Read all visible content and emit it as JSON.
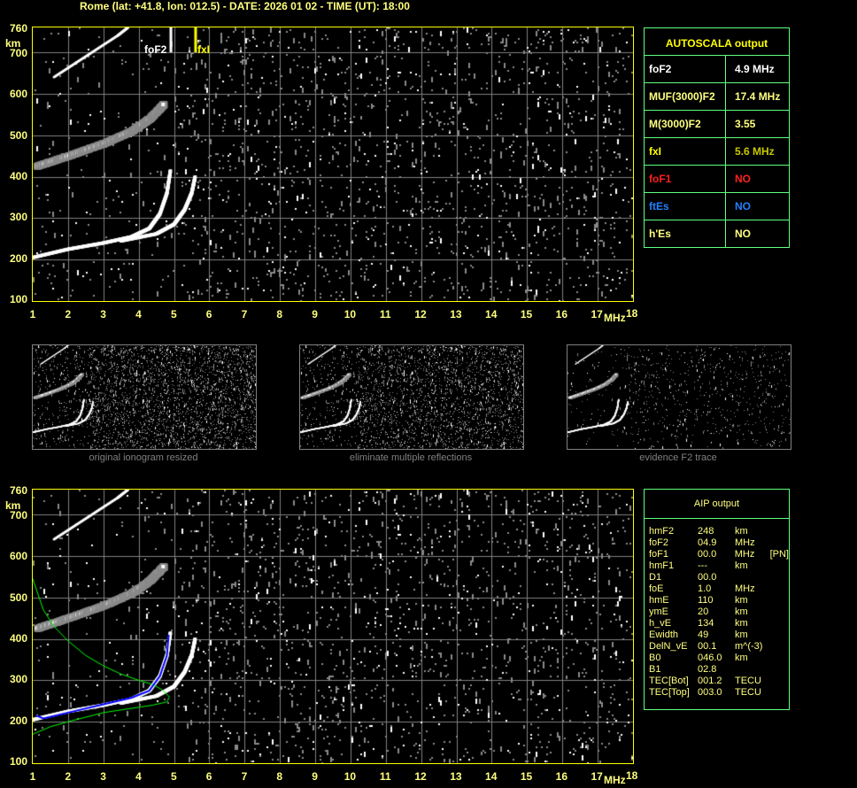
{
  "header": {
    "title": "Rome (lat: +41.8, lon: 012.5) - DATE: 2026 01 02 - TIME (UT): 18:00"
  },
  "axes": {
    "y_unit": "km",
    "x_unit": "MHz",
    "y_ticks": [
      "760",
      "700",
      "600",
      "500",
      "400",
      "300",
      "200",
      "100"
    ],
    "x_ticks": [
      "1",
      "2",
      "3",
      "4",
      "5",
      "6",
      "7",
      "8",
      "9",
      "10",
      "11",
      "12",
      "13",
      "14",
      "15",
      "16",
      "17"
    ],
    "x_last": "18"
  },
  "markers": {
    "foF2_label": "foF2",
    "fxI_label": "fxI",
    "foF2_freq": 4.9,
    "fxI_freq": 5.6
  },
  "autoscala": {
    "title": "AUTOSCALA output",
    "rows": [
      {
        "key": "foF2",
        "value": "4.9 MHz",
        "color": "#ffffff",
        "vcolor": "#ffffff"
      },
      {
        "key": "MUF(3000)F2",
        "value": "17.4 MHz",
        "color": "#ffff80",
        "vcolor": "#ffff80"
      },
      {
        "key": "M(3000)F2",
        "value": "3.55",
        "color": "#ffff80",
        "vcolor": "#ffff80"
      },
      {
        "key": "fxI",
        "value": "5.6 MHz",
        "color": "#ffff00",
        "vcolor": "#c8c800"
      },
      {
        "key": "foF1",
        "value": "NO",
        "color": "#ff2020",
        "vcolor": "#ff2020"
      },
      {
        "key": "ftEs",
        "value": "NO",
        "color": "#2080ff",
        "vcolor": "#2080ff"
      },
      {
        "key": "h'Es",
        "value": "NO",
        "color": "#ffff80",
        "vcolor": "#ffff80"
      }
    ]
  },
  "thumbnails": [
    {
      "caption": "original ionogram resized"
    },
    {
      "caption": "eliminate multiple reflections"
    },
    {
      "caption": "evidence F2 trace"
    }
  ],
  "aip": {
    "title": "AIP output",
    "rows": [
      [
        "hmF2",
        "248",
        "km",
        ""
      ],
      [
        "foF2",
        "04.9",
        "MHz",
        ""
      ],
      [
        "foF1",
        "00.0",
        "MHz",
        "[PN]"
      ],
      [
        "hmF1",
        "---",
        "km",
        ""
      ],
      [
        "D1",
        "00.0",
        "",
        ""
      ],
      [
        "foE",
        "1.0",
        "MHz",
        ""
      ],
      [
        "hmE",
        "110",
        "km",
        ""
      ],
      [
        "ymE",
        "20",
        "km",
        ""
      ],
      [
        "h_vE",
        "134",
        "km",
        ""
      ],
      [
        "Ewidth",
        "49",
        "km",
        ""
      ],
      [
        "DelN_vE",
        "00.1",
        "m^(-3)",
        ""
      ],
      [
        "B0",
        "046.0",
        "km",
        ""
      ],
      [
        "B1",
        "02.8",
        "",
        ""
      ],
      [
        "TEC[Bot]",
        "001.2",
        "TECU",
        ""
      ],
      [
        "TEC[Top]",
        "003.0",
        "TECU",
        ""
      ]
    ]
  },
  "colors": {
    "axis": "#ffff00",
    "grid": "#808080",
    "profile": "#00ff00",
    "fit": "#0000ff",
    "table_border": "#60ff80"
  }
}
